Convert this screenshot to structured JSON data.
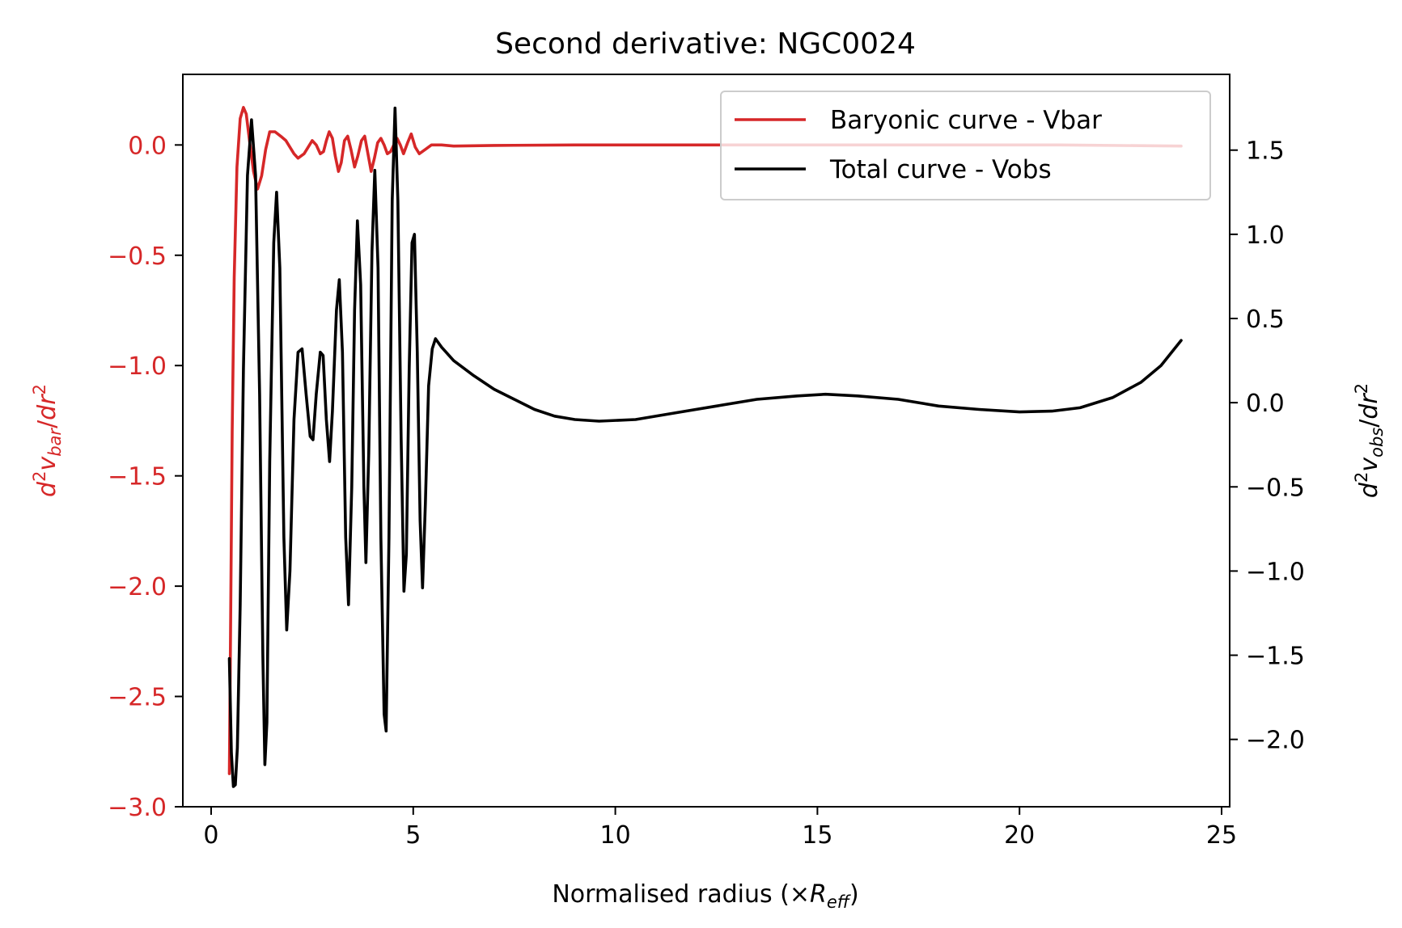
{
  "chart_data": {
    "type": "line",
    "title": "Second derivative: NGC0024",
    "xlabel": {
      "main": "Normalised radius (×",
      "sym": "R",
      "sub": "eff",
      "close": ")"
    },
    "ylabel_left": {
      "d": "d",
      "sup1": "2",
      "v": "v",
      "sub": "bar",
      "slash": "/",
      "dr": "dr",
      "sup2": "2"
    },
    "ylabel_right": {
      "d": "d",
      "sup1": "2",
      "v": "v",
      "sub": "obs",
      "slash": "/",
      "dr": "dr",
      "sup2": "2"
    },
    "xlim": [
      -0.7,
      25.2
    ],
    "ylim_left": [
      -3.0,
      0.32
    ],
    "ylim_right": [
      -2.4,
      1.95
    ],
    "x_ticks": [
      0,
      5,
      10,
      15,
      20,
      25
    ],
    "x_tick_labels": [
      "0",
      "5",
      "10",
      "15",
      "20",
      "25"
    ],
    "y_left_ticks": [
      0.0,
      -0.5,
      -1.0,
      -1.5,
      -2.0,
      -2.5,
      -3.0
    ],
    "y_left_tick_labels": [
      "0.0",
      "−0.5",
      "−1.0",
      "−1.5",
      "−2.0",
      "−2.5",
      "−3.0"
    ],
    "y_right_ticks": [
      1.5,
      1.0,
      0.5,
      0.0,
      -0.5,
      -1.0,
      -1.5,
      -2.0
    ],
    "y_right_tick_labels": [
      "1.5",
      "1.0",
      "0.5",
      "0.0",
      "−0.5",
      "−1.0",
      "−1.5",
      "−2.0"
    ],
    "grid": false,
    "legend_position": "upper-right",
    "colors": {
      "vbar": "#d62728",
      "vobs": "#000000",
      "left_axis_text": "#d62728",
      "right_axis_text": "#000000"
    },
    "series": [
      {
        "name": "Baryonic curve - Vbar",
        "axis": "left",
        "color": "#d62728",
        "points": [
          [
            0.45,
            -2.85
          ],
          [
            0.48,
            -2.2
          ],
          [
            0.52,
            -1.3
          ],
          [
            0.57,
            -0.6
          ],
          [
            0.64,
            -0.1
          ],
          [
            0.72,
            0.12
          ],
          [
            0.8,
            0.17
          ],
          [
            0.87,
            0.14
          ],
          [
            0.95,
            0.02
          ],
          [
            1.05,
            -0.12
          ],
          [
            1.15,
            -0.2
          ],
          [
            1.25,
            -0.14
          ],
          [
            1.35,
            -0.02
          ],
          [
            1.45,
            0.06
          ],
          [
            1.58,
            0.06
          ],
          [
            1.72,
            0.04
          ],
          [
            1.85,
            0.02
          ],
          [
            1.95,
            -0.01
          ],
          [
            2.05,
            -0.04
          ],
          [
            2.15,
            -0.06
          ],
          [
            2.3,
            -0.04
          ],
          [
            2.4,
            -0.01
          ],
          [
            2.5,
            0.02
          ],
          [
            2.6,
            0.0
          ],
          [
            2.7,
            -0.04
          ],
          [
            2.78,
            -0.03
          ],
          [
            2.85,
            0.02
          ],
          [
            2.92,
            0.06
          ],
          [
            3.0,
            0.03
          ],
          [
            3.07,
            -0.05
          ],
          [
            3.15,
            -0.12
          ],
          [
            3.22,
            -0.08
          ],
          [
            3.3,
            0.02
          ],
          [
            3.38,
            0.04
          ],
          [
            3.46,
            -0.02
          ],
          [
            3.55,
            -0.1
          ],
          [
            3.63,
            -0.05
          ],
          [
            3.72,
            0.02
          ],
          [
            3.8,
            0.04
          ],
          [
            3.88,
            -0.04
          ],
          [
            3.96,
            -0.12
          ],
          [
            4.04,
            -0.06
          ],
          [
            4.12,
            0.01
          ],
          [
            4.2,
            0.03
          ],
          [
            4.28,
            0.0
          ],
          [
            4.36,
            -0.04
          ],
          [
            4.44,
            -0.03
          ],
          [
            4.52,
            0.0
          ],
          [
            4.6,
            0.03
          ],
          [
            4.68,
            0.0
          ],
          [
            4.76,
            -0.04
          ],
          [
            4.86,
            0.01
          ],
          [
            4.95,
            0.05
          ],
          [
            5.05,
            -0.01
          ],
          [
            5.15,
            -0.04
          ],
          [
            5.3,
            -0.02
          ],
          [
            5.45,
            0.0
          ],
          [
            5.7,
            0.0
          ],
          [
            6.0,
            -0.005
          ],
          [
            7.0,
            -0.002
          ],
          [
            9.0,
            0.0
          ],
          [
            12.0,
            0.0
          ],
          [
            15.0,
            0.0
          ],
          [
            18.0,
            0.0
          ],
          [
            21.0,
            0.0
          ],
          [
            24.0,
            -0.005
          ]
        ]
      },
      {
        "name": "Total curve - Vobs",
        "axis": "right",
        "color": "#000000",
        "points": [
          [
            0.45,
            -1.52
          ],
          [
            0.5,
            -2.08
          ],
          [
            0.55,
            -2.28
          ],
          [
            0.6,
            -2.27
          ],
          [
            0.65,
            -2.05
          ],
          [
            0.72,
            -1.2
          ],
          [
            0.8,
            0.2
          ],
          [
            0.9,
            1.35
          ],
          [
            1.0,
            1.68
          ],
          [
            1.1,
            1.35
          ],
          [
            1.2,
            0.05
          ],
          [
            1.28,
            -1.5
          ],
          [
            1.33,
            -2.15
          ],
          [
            1.38,
            -1.9
          ],
          [
            1.45,
            -0.35
          ],
          [
            1.55,
            0.95
          ],
          [
            1.62,
            1.25
          ],
          [
            1.7,
            0.8
          ],
          [
            1.8,
            -0.8
          ],
          [
            1.87,
            -1.35
          ],
          [
            1.95,
            -1.0
          ],
          [
            2.05,
            -0.1
          ],
          [
            2.15,
            0.3
          ],
          [
            2.25,
            0.32
          ],
          [
            2.35,
            0.05
          ],
          [
            2.45,
            -0.2
          ],
          [
            2.52,
            -0.22
          ],
          [
            2.6,
            0.05
          ],
          [
            2.7,
            0.3
          ],
          [
            2.77,
            0.28
          ],
          [
            2.85,
            -0.1
          ],
          [
            2.93,
            -0.35
          ],
          [
            3.0,
            -0.05
          ],
          [
            3.1,
            0.55
          ],
          [
            3.17,
            0.73
          ],
          [
            3.25,
            0.3
          ],
          [
            3.33,
            -0.8
          ],
          [
            3.4,
            -1.2
          ],
          [
            3.48,
            -0.5
          ],
          [
            3.55,
            0.55
          ],
          [
            3.62,
            1.08
          ],
          [
            3.7,
            0.7
          ],
          [
            3.78,
            -0.5
          ],
          [
            3.83,
            -0.95
          ],
          [
            3.9,
            -0.3
          ],
          [
            3.98,
            0.9
          ],
          [
            4.05,
            1.38
          ],
          [
            4.13,
            0.8
          ],
          [
            4.2,
            -0.8
          ],
          [
            4.28,
            -1.85
          ],
          [
            4.33,
            -1.95
          ],
          [
            4.4,
            -0.8
          ],
          [
            4.48,
            1.2
          ],
          [
            4.55,
            1.75
          ],
          [
            4.62,
            1.2
          ],
          [
            4.7,
            -0.2
          ],
          [
            4.77,
            -1.12
          ],
          [
            4.83,
            -0.9
          ],
          [
            4.9,
            0.2
          ],
          [
            4.97,
            0.95
          ],
          [
            5.03,
            1.0
          ],
          [
            5.1,
            0.3
          ],
          [
            5.17,
            -0.7
          ],
          [
            5.23,
            -1.1
          ],
          [
            5.3,
            -0.6
          ],
          [
            5.38,
            0.1
          ],
          [
            5.47,
            0.32
          ],
          [
            5.55,
            0.38
          ],
          [
            5.7,
            0.33
          ],
          [
            6.0,
            0.25
          ],
          [
            6.5,
            0.16
          ],
          [
            7.0,
            0.08
          ],
          [
            7.5,
            0.02
          ],
          [
            8.0,
            -0.04
          ],
          [
            8.5,
            -0.08
          ],
          [
            9.0,
            -0.1
          ],
          [
            9.6,
            -0.11
          ],
          [
            10.5,
            -0.1
          ],
          [
            11.5,
            -0.06
          ],
          [
            12.5,
            -0.02
          ],
          [
            13.5,
            0.02
          ],
          [
            14.5,
            0.04
          ],
          [
            15.2,
            0.05
          ],
          [
            16.0,
            0.04
          ],
          [
            17.0,
            0.02
          ],
          [
            18.0,
            -0.02
          ],
          [
            19.0,
            -0.04
          ],
          [
            20.0,
            -0.055
          ],
          [
            20.8,
            -0.05
          ],
          [
            21.5,
            -0.03
          ],
          [
            22.3,
            0.03
          ],
          [
            23.0,
            0.12
          ],
          [
            23.5,
            0.22
          ],
          [
            24.0,
            0.37
          ]
        ]
      }
    ]
  }
}
